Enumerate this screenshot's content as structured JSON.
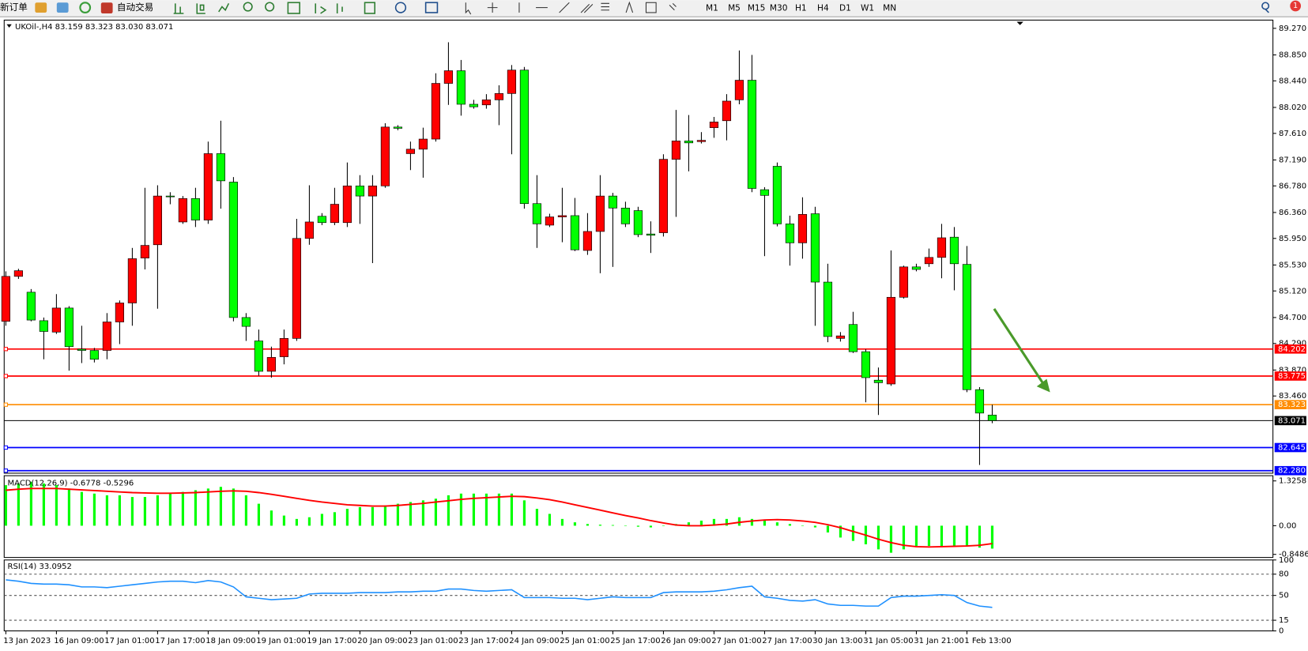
{
  "toolbar": {
    "new_order": "新订单",
    "auto_trading": "自动交易",
    "timeframes": [
      "M1",
      "M5",
      "M15",
      "M30",
      "H1",
      "H4",
      "D1",
      "W1",
      "MN"
    ],
    "notification": "1"
  },
  "chart_data": [
    {
      "type": "candlestick",
      "title": "UKOil-,H4  83.159 83.323 83.030 83.071",
      "up_color": "#ff0000",
      "down_color": "#00ff00",
      "ylim": [
        82.24,
        89.4
      ],
      "yticks": [
        {
          "value": 89.27,
          "label": "89.270"
        },
        {
          "value": 88.85,
          "label": "88.850"
        },
        {
          "value": 88.44,
          "label": "88.440"
        },
        {
          "value": 88.02,
          "label": "88.020"
        },
        {
          "value": 87.61,
          "label": "87.610"
        },
        {
          "value": 87.19,
          "label": "87.190"
        },
        {
          "value": 86.78,
          "label": "86.780"
        },
        {
          "value": 86.36,
          "label": "86.360"
        },
        {
          "value": 85.95,
          "label": "85.950"
        },
        {
          "value": 85.53,
          "label": "85.530"
        },
        {
          "value": 85.12,
          "label": "85.120"
        },
        {
          "value": 84.7,
          "label": "84.700"
        },
        {
          "value": 84.29,
          "label": "84.290"
        },
        {
          "value": 83.87,
          "label": "83.870"
        },
        {
          "value": 83.46,
          "label": "83.460"
        }
      ],
      "levels": [
        {
          "value": 84.202,
          "color": "#ff0000"
        },
        {
          "value": 83.775,
          "color": "#ff0000"
        },
        {
          "value": 83.323,
          "color": "#ff8c00"
        },
        {
          "value": 83.071,
          "color": "#000000"
        },
        {
          "value": 82.645,
          "color": "#0000ff"
        },
        {
          "value": 82.28,
          "label": "82.280",
          "color": "#0000ff"
        }
      ],
      "categories": [
        "13 Jan 2023",
        null,
        null,
        null,
        "16 Jan 09:00",
        null,
        null,
        null,
        "17 Jan 01:00",
        null,
        null,
        null,
        "17 Jan 17:00",
        null,
        null,
        null,
        "18 Jan 09:00",
        null,
        null,
        null,
        "19 Jan 01:00",
        null,
        null,
        null,
        "19 Jan 17:00",
        null,
        null,
        null,
        "20 Jan 09:00",
        null,
        null,
        null,
        "23 Jan 01:00",
        null,
        null,
        null,
        "23 Jan 17:00",
        null,
        null,
        null,
        "24 Jan 09:00",
        null,
        null,
        null,
        "25 Jan 01:00",
        null,
        null,
        null,
        "25 Jan 17:00",
        null,
        null,
        null,
        "26 Jan 09:00",
        null,
        null,
        null,
        "27 Jan 01:00",
        null,
        null,
        null,
        "27 Jan 17:00",
        null,
        null,
        null,
        "30 Jan 13:00",
        null,
        null,
        null,
        "31 Jan 05:00",
        null,
        null,
        null,
        "31 Jan 21:00",
        null,
        null,
        null,
        "1 Feb 13:00",
        null,
        null
      ],
      "ohlc": [
        [
          84.64,
          85.43,
          84.57,
          85.35
        ],
        [
          85.35,
          85.47,
          85.31,
          85.44
        ],
        [
          85.1,
          85.15,
          84.64,
          84.66
        ],
        [
          84.65,
          84.7,
          84.04,
          84.48
        ],
        [
          84.47,
          85.07,
          84.44,
          84.85
        ],
        [
          84.85,
          84.88,
          83.86,
          84.24
        ],
        [
          84.2,
          84.57,
          83.98,
          84.18
        ],
        [
          84.18,
          84.22,
          83.99,
          84.04
        ],
        [
          84.18,
          84.77,
          84.04,
          84.63
        ],
        [
          84.63,
          84.97,
          84.28,
          84.93
        ],
        [
          84.93,
          85.8,
          84.57,
          85.63
        ],
        [
          85.64,
          86.75,
          85.46,
          85.84
        ],
        [
          85.85,
          86.79,
          84.84,
          86.62
        ],
        [
          86.62,
          86.68,
          86.49,
          86.61
        ],
        [
          86.21,
          86.62,
          86.18,
          86.58
        ],
        [
          86.58,
          86.75,
          86.13,
          86.24
        ],
        [
          86.24,
          87.48,
          86.18,
          87.29
        ],
        [
          87.29,
          87.81,
          86.42,
          86.86
        ],
        [
          86.84,
          86.92,
          84.64,
          84.7
        ],
        [
          84.7,
          84.77,
          84.33,
          84.56
        ],
        [
          84.33,
          84.51,
          83.78,
          83.85
        ],
        [
          83.85,
          84.24,
          83.75,
          84.07
        ],
        [
          84.08,
          84.51,
          83.96,
          84.37
        ],
        [
          84.37,
          86.26,
          84.33,
          85.95
        ],
        [
          85.95,
          86.79,
          85.85,
          86.21
        ],
        [
          86.3,
          86.35,
          86.16,
          86.2
        ],
        [
          86.2,
          86.75,
          86.16,
          86.49
        ],
        [
          86.2,
          87.15,
          86.13,
          86.78
        ],
        [
          86.78,
          86.95,
          86.18,
          86.62
        ],
        [
          86.62,
          86.95,
          85.56,
          86.78
        ],
        [
          86.78,
          87.77,
          86.75,
          87.71
        ],
        [
          87.71,
          87.74,
          87.66,
          87.69
        ],
        [
          87.29,
          87.48,
          87.03,
          87.36
        ],
        [
          87.36,
          87.7,
          86.91,
          87.52
        ],
        [
          87.52,
          88.56,
          87.48,
          88.4
        ],
        [
          88.4,
          89.05,
          88.06,
          88.6
        ],
        [
          88.6,
          88.77,
          87.89,
          88.07
        ],
        [
          88.07,
          88.14,
          88.0,
          88.03
        ],
        [
          88.06,
          88.23,
          88.0,
          88.14
        ],
        [
          88.14,
          88.37,
          87.74,
          88.24
        ],
        [
          88.24,
          88.69,
          87.28,
          88.61
        ],
        [
          88.61,
          88.66,
          86.42,
          86.5
        ],
        [
          86.5,
          86.95,
          85.8,
          86.18
        ],
        [
          86.16,
          86.34,
          86.13,
          86.29
        ],
        [
          86.29,
          86.75,
          85.89,
          86.31
        ],
        [
          86.31,
          86.59,
          85.75,
          85.77
        ],
        [
          85.76,
          86.35,
          85.69,
          86.06
        ],
        [
          86.06,
          86.95,
          85.4,
          86.62
        ],
        [
          86.62,
          86.67,
          85.5,
          86.43
        ],
        [
          86.43,
          86.53,
          86.13,
          86.18
        ],
        [
          86.39,
          86.45,
          85.97,
          86.01
        ],
        [
          86.02,
          86.22,
          85.72,
          86.0
        ],
        [
          86.04,
          87.28,
          85.98,
          87.2
        ],
        [
          87.2,
          87.98,
          86.29,
          87.49
        ],
        [
          87.49,
          87.9,
          87.01,
          87.46
        ],
        [
          87.48,
          87.63,
          87.45,
          87.5
        ],
        [
          87.7,
          87.87,
          87.54,
          87.79
        ],
        [
          87.81,
          88.23,
          87.5,
          88.12
        ],
        [
          88.14,
          88.92,
          88.07,
          88.45
        ],
        [
          88.45,
          88.85,
          86.68,
          86.74
        ],
        [
          86.72,
          86.76,
          85.67,
          86.63
        ],
        [
          87.09,
          87.15,
          86.14,
          86.18
        ],
        [
          86.18,
          86.31,
          85.52,
          85.88
        ],
        [
          85.88,
          86.6,
          85.63,
          86.33
        ],
        [
          86.34,
          86.45,
          84.57,
          85.26
        ],
        [
          85.26,
          85.55,
          84.31,
          84.4
        ],
        [
          84.37,
          84.47,
          84.32,
          84.41
        ],
        [
          84.59,
          84.79,
          84.14,
          84.16
        ],
        [
          84.16,
          84.2,
          83.36,
          83.75
        ],
        [
          83.71,
          83.91,
          83.16,
          83.67
        ],
        [
          83.65,
          85.76,
          83.62,
          85.02
        ],
        [
          85.02,
          85.52,
          85.0,
          85.5
        ],
        [
          85.5,
          85.55,
          85.43,
          85.46
        ],
        [
          85.55,
          85.79,
          85.5,
          85.65
        ],
        [
          85.65,
          86.18,
          85.32,
          85.96
        ],
        [
          85.97,
          86.13,
          85.13,
          85.55
        ],
        [
          85.54,
          85.83,
          83.52,
          83.56
        ],
        [
          83.56,
          83.6,
          82.37,
          83.19
        ],
        [
          83.159,
          83.323,
          83.03,
          83.071
        ]
      ]
    },
    {
      "type": "macd",
      "title": "MACD(12,26,9) -0.6778 -0.5296",
      "bar_color": "#00ff00",
      "signal_color": "#ff0000",
      "ylim": [
        -0.94,
        1.48
      ],
      "yticks": [
        1.3258,
        {
          "value": 0,
          "label": "0.00"
        },
        -0.8486
      ],
      "histogram": [
        1.2,
        1.25,
        1.3,
        1.25,
        1.2,
        1.1,
        1.0,
        0.95,
        0.9,
        0.9,
        0.85,
        0.85,
        0.9,
        0.95,
        1.0,
        1.05,
        1.1,
        1.15,
        1.1,
        0.9,
        0.65,
        0.45,
        0.3,
        0.2,
        0.25,
        0.35,
        0.4,
        0.5,
        0.55,
        0.55,
        0.6,
        0.65,
        0.7,
        0.75,
        0.8,
        0.9,
        0.95,
        0.95,
        0.95,
        0.95,
        0.95,
        0.75,
        0.5,
        0.35,
        0.2,
        0.1,
        0.05,
        0.03,
        0.02,
        0.01,
        -0.03,
        -0.05,
        0.0,
        0.05,
        0.1,
        0.15,
        0.2,
        0.2,
        0.25,
        0.2,
        0.15,
        0.1,
        0.05,
        0.0,
        -0.05,
        -0.2,
        -0.35,
        -0.45,
        -0.55,
        -0.7,
        -0.8,
        -0.7,
        -0.6,
        -0.6,
        -0.6,
        -0.6,
        -0.6,
        -0.65,
        -0.6778
      ],
      "signal": [
        1.05,
        1.08,
        1.1,
        1.1,
        1.1,
        1.08,
        1.06,
        1.04,
        1.02,
        1.0,
        0.98,
        0.97,
        0.96,
        0.96,
        0.97,
        0.98,
        1.0,
        1.02,
        1.03,
        1.02,
        0.98,
        0.93,
        0.87,
        0.81,
        0.75,
        0.7,
        0.66,
        0.62,
        0.6,
        0.58,
        0.58,
        0.6,
        0.63,
        0.66,
        0.7,
        0.74,
        0.78,
        0.81,
        0.83,
        0.85,
        0.87,
        0.86,
        0.82,
        0.77,
        0.7,
        0.62,
        0.54,
        0.46,
        0.38,
        0.3,
        0.23,
        0.15,
        0.08,
        0.02,
        0.0,
        0.0,
        0.02,
        0.05,
        0.1,
        0.14,
        0.17,
        0.18,
        0.17,
        0.14,
        0.1,
        0.03,
        -0.06,
        -0.17,
        -0.28,
        -0.4,
        -0.5,
        -0.58,
        -0.62,
        -0.63,
        -0.62,
        -0.61,
        -0.6,
        -0.58,
        -0.5296
      ]
    },
    {
      "type": "line",
      "title": "RSI(14) 33.0952",
      "color": "#1e90ff",
      "ylim": [
        0,
        100
      ],
      "yticks": [
        100,
        80,
        50,
        15,
        0
      ],
      "levels": [
        80,
        50,
        15
      ],
      "values": [
        72,
        70,
        67,
        66,
        66,
        65,
        62,
        62,
        61,
        63,
        65,
        67,
        69,
        70,
        70,
        68,
        71,
        69,
        62,
        48,
        46,
        44,
        45,
        46,
        52,
        53,
        53,
        53,
        54,
        54,
        54,
        55,
        55,
        56,
        56,
        59,
        59,
        57,
        56,
        57,
        58,
        47,
        47,
        47,
        46,
        46,
        44,
        46,
        48,
        47,
        47,
        47,
        54,
        55,
        55,
        55,
        56,
        58,
        61,
        63,
        48,
        46,
        43,
        42,
        44,
        38,
        36,
        36,
        35,
        35,
        47,
        49,
        49,
        50,
        51,
        50,
        40,
        35,
        33.0952
      ]
    }
  ]
}
